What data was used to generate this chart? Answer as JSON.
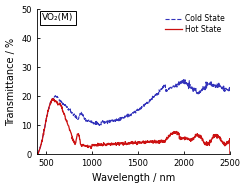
{
  "title": "",
  "xlabel": "Wavelength / nm",
  "ylabel": "Transmittance / %",
  "xlim": [
    400,
    2500
  ],
  "ylim": [
    0,
    50
  ],
  "yticks": [
    0,
    10,
    20,
    30,
    40,
    50
  ],
  "xticks": [
    500,
    1000,
    1500,
    2000,
    2500
  ],
  "cold_color": "#3333bb",
  "hot_color": "#cc1111",
  "annotation": "VO₂(M)",
  "legend_cold": "Cold State",
  "legend_hot": "Hot State",
  "bg_color": "#ffffff"
}
